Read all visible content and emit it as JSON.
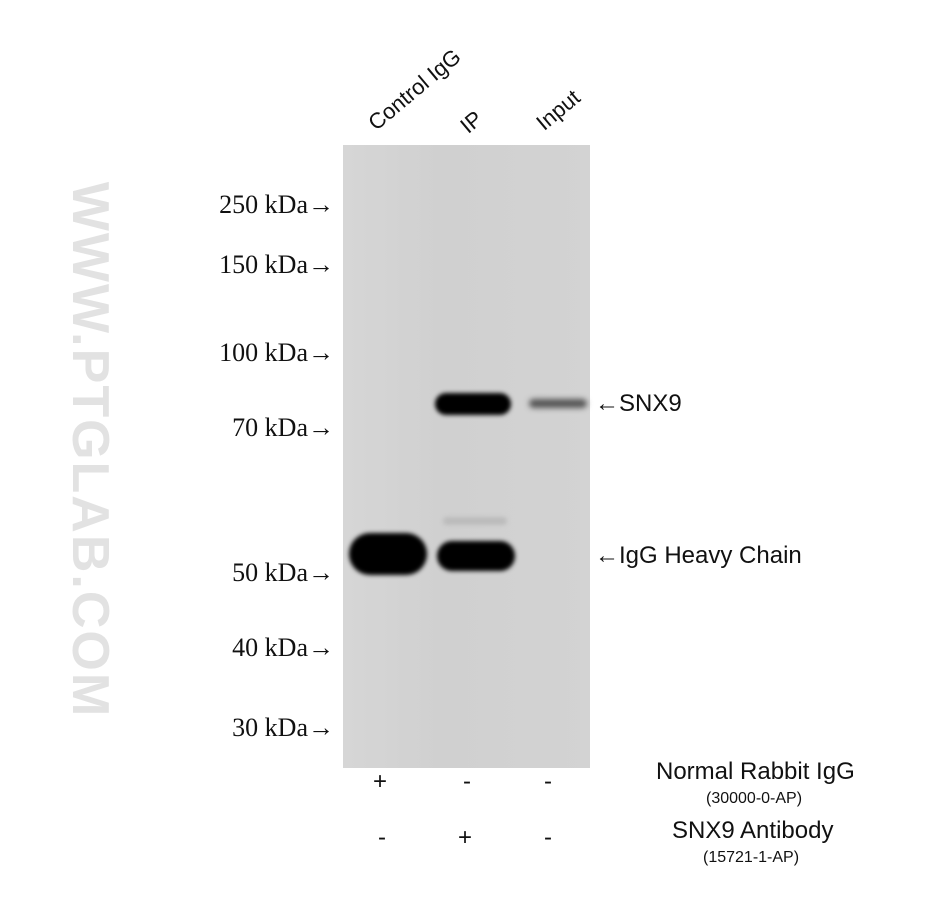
{
  "lanes": [
    "Control IgG",
    "IP",
    "Input"
  ],
  "markers": [
    "250 kDa→",
    "150 kDa→",
    "100 kDa→",
    "70 kDa→",
    "50 kDa→",
    "40 kDa→",
    "30 kDa→"
  ],
  "bands": {
    "snx9": "←SNX9",
    "igg": "←IgG Heavy Chain"
  },
  "watermark": "WWW.PTGLAB.COM",
  "rows": [
    {
      "name": "Normal Rabbit IgG",
      "catalog": "(30000-0-AP)",
      "signs": [
        "+",
        "-",
        "-"
      ]
    },
    {
      "name": "SNX9 Antibody",
      "catalog": "(15721-1-AP)",
      "signs": [
        "-",
        "+",
        "-"
      ]
    }
  ]
}
